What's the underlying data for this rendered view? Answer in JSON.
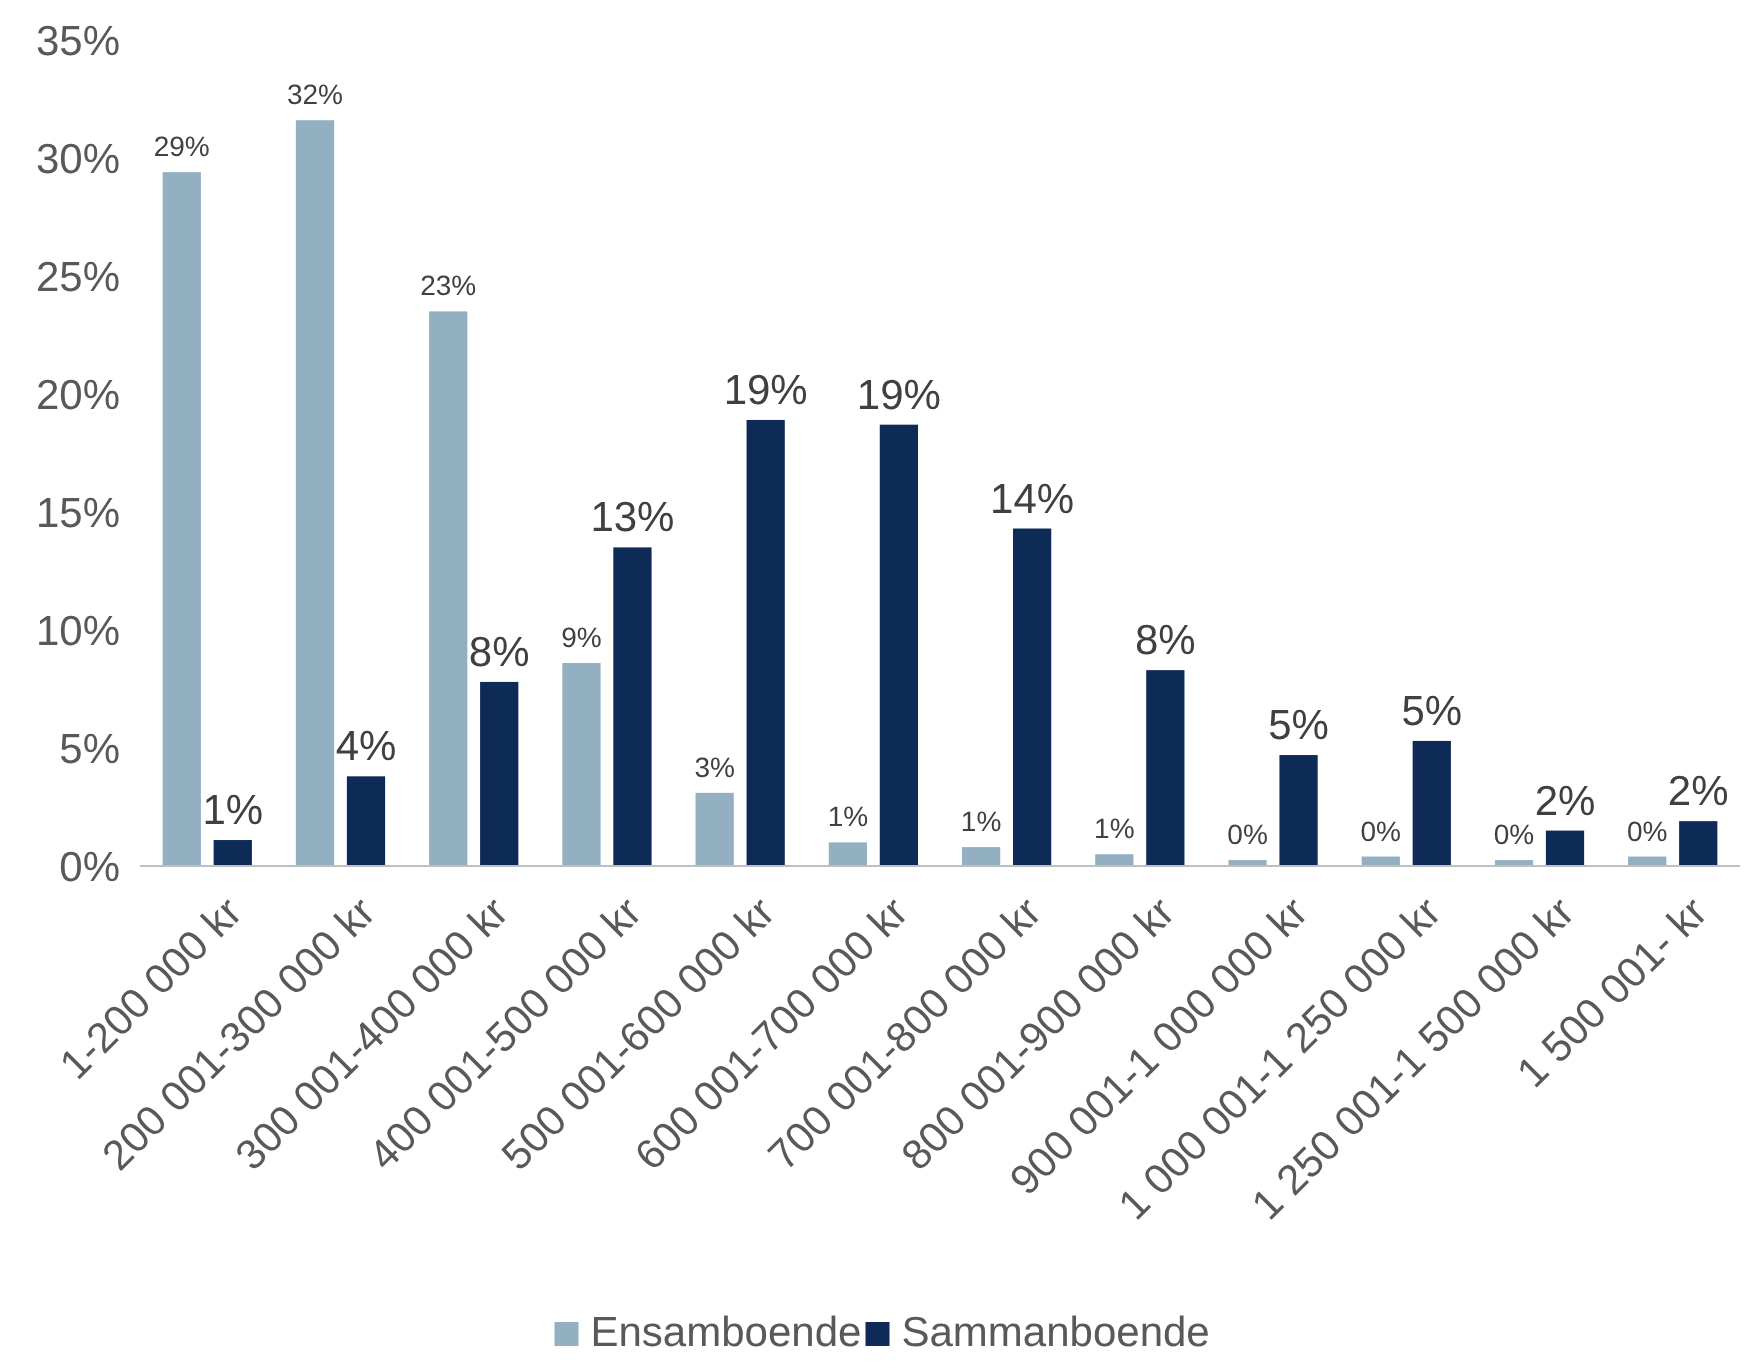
{
  "chart_data": {
    "type": "bar",
    "categories": [
      "1-200 000 kr",
      "200 001-300 000 kr",
      "300 001-400 000 kr",
      "400 001-500 000 kr",
      "500 001-600 000 kr",
      "600 001-700 000 kr",
      "700 001-800 000 kr",
      "800 001-900 000 kr",
      "900 001-1 000 000 kr",
      "1 000 001-1 250 000 kr",
      "1 250 001-1 500 000 kr",
      "1 500 001- kr"
    ],
    "series": [
      {
        "name": "Ensamboende",
        "color": "#93afc2",
        "values": [
          29.4,
          31.6,
          23.5,
          8.6,
          3.1,
          1.0,
          0.8,
          0.5,
          0.25,
          0.4,
          0.25,
          0.4
        ],
        "value_labels": [
          "29%",
          "32%",
          "23%",
          "9%",
          "3%",
          "1%",
          "1%",
          "1%",
          "0%",
          "0%",
          "0%",
          "0%"
        ]
      },
      {
        "name": "Sammanboende",
        "color": "#0e2a57",
        "values": [
          1.1,
          3.8,
          7.8,
          13.5,
          18.9,
          18.7,
          14.3,
          8.3,
          4.7,
          5.3,
          1.5,
          1.9
        ],
        "value_labels": [
          "1%",
          "4%",
          "8%",
          "13%",
          "19%",
          "19%",
          "14%",
          "8%",
          "5%",
          "5%",
          "2%",
          "2%"
        ]
      }
    ],
    "ylim": [
      0,
      35
    ],
    "yticks": [
      {
        "value": 0,
        "label": "0%"
      },
      {
        "value": 5,
        "label": "5%"
      },
      {
        "value": 10,
        "label": "10%"
      },
      {
        "value": 15,
        "label": "15%"
      },
      {
        "value": 20,
        "label": "20%"
      },
      {
        "value": 25,
        "label": "25%"
      },
      {
        "value": 30,
        "label": "30%"
      },
      {
        "value": 35,
        "label": "35%"
      }
    ],
    "grid": false,
    "legend": "bottom"
  }
}
